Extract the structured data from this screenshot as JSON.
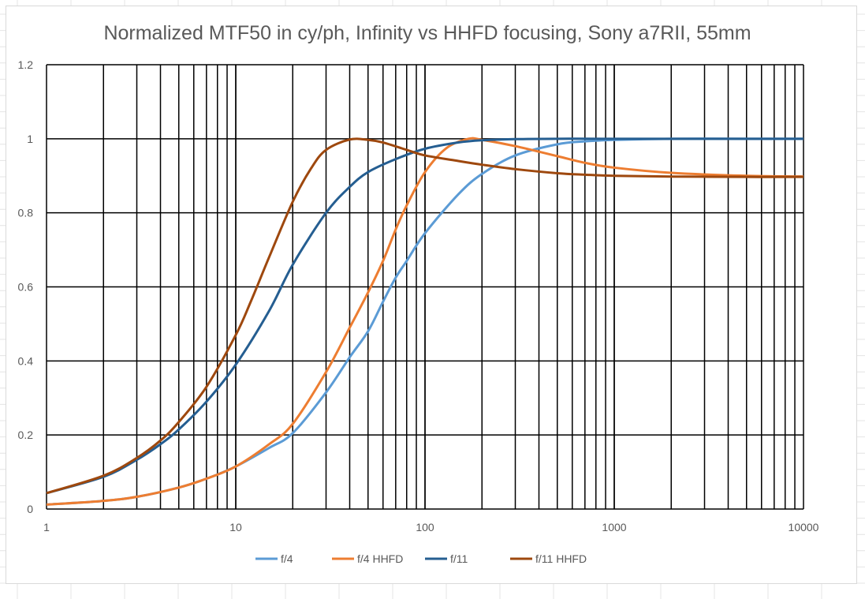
{
  "chart_data": {
    "type": "line",
    "title": "Normalized MTF50 in cy/ph, Infinity vs HHFD focusing, Sony a7RII, 55mm",
    "xlabel": "",
    "ylabel": "",
    "x_scale": "log",
    "xlim": [
      1,
      10000
    ],
    "ylim": [
      0,
      1.2
    ],
    "x_ticks": [
      "1",
      "10",
      "100",
      "1000",
      "10000"
    ],
    "y_ticks": [
      "0",
      "0.2",
      "0.4",
      "0.6",
      "0.8",
      "1",
      "1.2"
    ],
    "grid": true,
    "legend_position": "bottom",
    "series": [
      {
        "name": "f/4",
        "color": "#5b9bd5",
        "x": [
          1,
          2,
          3,
          5,
          7,
          10,
          15,
          20,
          30,
          40,
          50,
          60,
          70,
          80,
          100,
          150,
          200,
          300,
          500,
          700,
          1000,
          2000,
          5000,
          10000
        ],
        "y": [
          0.012,
          0.022,
          0.033,
          0.058,
          0.082,
          0.115,
          0.165,
          0.205,
          0.315,
          0.41,
          0.48,
          0.56,
          0.625,
          0.67,
          0.745,
          0.85,
          0.905,
          0.955,
          0.985,
          0.993,
          0.997,
          1.0,
          1.0,
          1.0
        ]
      },
      {
        "name": "f/4 HHFD",
        "color": "#ed7d31",
        "x": [
          1,
          2,
          3,
          5,
          7,
          10,
          15,
          20,
          30,
          40,
          50,
          60,
          70,
          80,
          100,
          130,
          170,
          200,
          300,
          500,
          700,
          1000,
          2000,
          5000,
          10000
        ],
        "y": [
          0.012,
          0.022,
          0.033,
          0.058,
          0.082,
          0.115,
          0.175,
          0.23,
          0.37,
          0.49,
          0.585,
          0.67,
          0.755,
          0.82,
          0.91,
          0.975,
          1.0,
          0.997,
          0.98,
          0.953,
          0.935,
          0.922,
          0.908,
          0.9,
          0.898
        ]
      },
      {
        "name": "f/11",
        "color": "#255e91",
        "x": [
          1,
          2,
          3,
          4,
          5,
          7,
          10,
          15,
          20,
          30,
          40,
          50,
          70,
          100,
          150,
          200,
          300,
          500,
          1000,
          10000
        ],
        "y": [
          0.043,
          0.087,
          0.133,
          0.175,
          0.215,
          0.29,
          0.39,
          0.535,
          0.66,
          0.8,
          0.87,
          0.91,
          0.945,
          0.973,
          0.99,
          0.996,
          0.999,
          1.0,
          1.0,
          1.0
        ]
      },
      {
        "name": "f/11 HHFD",
        "color": "#9e480e",
        "x": [
          1,
          2,
          3,
          4,
          5,
          7,
          10,
          12,
          15,
          20,
          25,
          30,
          40,
          50,
          60,
          80,
          100,
          150,
          200,
          300,
          500,
          700,
          1000,
          2000,
          5000,
          10000
        ],
        "y": [
          0.043,
          0.09,
          0.138,
          0.185,
          0.235,
          0.33,
          0.47,
          0.56,
          0.68,
          0.83,
          0.92,
          0.97,
          0.998,
          0.997,
          0.99,
          0.97,
          0.955,
          0.94,
          0.93,
          0.918,
          0.907,
          0.903,
          0.9,
          0.898,
          0.897,
          0.897
        ]
      }
    ]
  }
}
